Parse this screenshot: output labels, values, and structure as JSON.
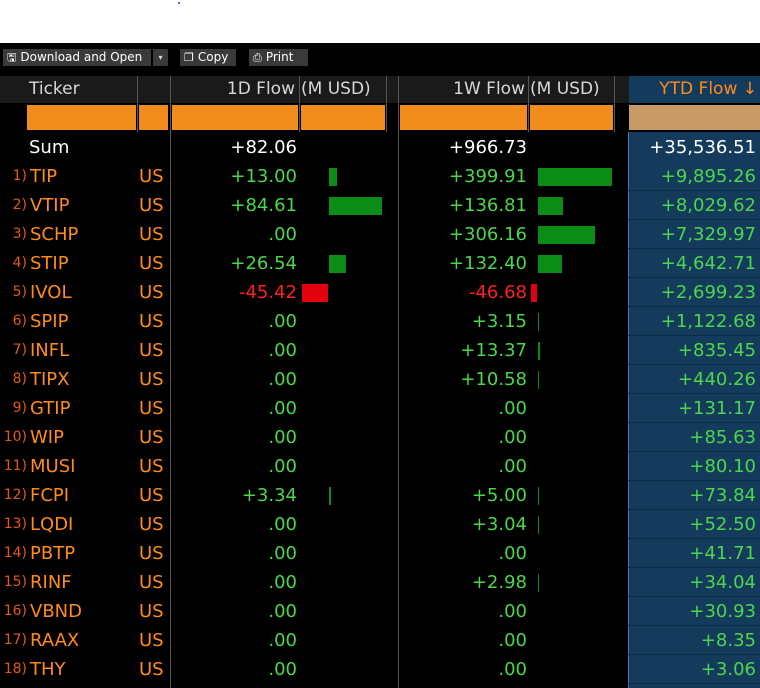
{
  "toolbar": {
    "download_label": "Download and Open",
    "dropdown_glyph": "▾",
    "copy_label": "Copy",
    "print_label": "Print"
  },
  "header": {
    "ticker": "Ticker",
    "flow_1d": "1D Flow",
    "flow_1w": "1W Flow",
    "unit": "(M USD)",
    "ytd": "YTD Flow ↓"
  },
  "sum": {
    "label": "Sum",
    "flow_1d": "+82.06",
    "flow_1w": "+966.73",
    "ytd": "+35,536.51"
  },
  "colors": {
    "orange": "#ff8c1a",
    "green": "#4cd64c",
    "red": "#ff2020",
    "bar_green": "#0b8c16",
    "bar_red": "#e3000f",
    "ytd_bg": "#143a5c"
  },
  "rows": [
    {
      "n": "1)",
      "ticker": "TIP",
      "country": "US",
      "d1": "+13.00",
      "w1": "+399.91",
      "ytd": "+9,895.26",
      "d1v": 13.0,
      "w1v": 399.91
    },
    {
      "n": "2)",
      "ticker": "VTIP",
      "country": "US",
      "d1": "+84.61",
      "w1": "+136.81",
      "ytd": "+8,029.62",
      "d1v": 84.61,
      "w1v": 136.81
    },
    {
      "n": "3)",
      "ticker": "SCHP",
      "country": "US",
      "d1": ".00",
      "w1": "+306.16",
      "ytd": "+7,329.97",
      "d1v": 0,
      "w1v": 306.16
    },
    {
      "n": "4)",
      "ticker": "STIP",
      "country": "US",
      "d1": "+26.54",
      "w1": "+132.40",
      "ytd": "+4,642.71",
      "d1v": 26.54,
      "w1v": 132.4
    },
    {
      "n": "5)",
      "ticker": "IVOL",
      "country": "US",
      "d1": "-45.42",
      "w1": "-46.68",
      "ytd": "+2,699.23",
      "d1v": -45.42,
      "w1v": -46.68
    },
    {
      "n": "6)",
      "ticker": "SPIP",
      "country": "US",
      "d1": ".00",
      "w1": "+3.15",
      "ytd": "+1,122.68",
      "d1v": 0,
      "w1v": 3.15
    },
    {
      "n": "7)",
      "ticker": "INFL",
      "country": "US",
      "d1": ".00",
      "w1": "+13.37",
      "ytd": "+835.45",
      "d1v": 0,
      "w1v": 13.37
    },
    {
      "n": "8)",
      "ticker": "TIPX",
      "country": "US",
      "d1": ".00",
      "w1": "+10.58",
      "ytd": "+440.26",
      "d1v": 0,
      "w1v": 10.58
    },
    {
      "n": "9)",
      "ticker": "GTIP",
      "country": "US",
      "d1": ".00",
      "w1": ".00",
      "ytd": "+131.17",
      "d1v": 0,
      "w1v": 0
    },
    {
      "n": "10)",
      "ticker": "WIP",
      "country": "US",
      "d1": ".00",
      "w1": ".00",
      "ytd": "+85.63",
      "d1v": 0,
      "w1v": 0
    },
    {
      "n": "11)",
      "ticker": "MUSI",
      "country": "US",
      "d1": ".00",
      "w1": ".00",
      "ytd": "+80.10",
      "d1v": 0,
      "w1v": 0
    },
    {
      "n": "12)",
      "ticker": "FCPI",
      "country": "US",
      "d1": "+3.34",
      "w1": "+5.00",
      "ytd": "+73.84",
      "d1v": 3.34,
      "w1v": 5.0
    },
    {
      "n": "13)",
      "ticker": "LQDI",
      "country": "US",
      "d1": ".00",
      "w1": "+3.04",
      "ytd": "+52.50",
      "d1v": 0,
      "w1v": 3.04
    },
    {
      "n": "14)",
      "ticker": "PBTP",
      "country": "US",
      "d1": ".00",
      "w1": ".00",
      "ytd": "+41.71",
      "d1v": 0,
      "w1v": 0
    },
    {
      "n": "15)",
      "ticker": "RINF",
      "country": "US",
      "d1": ".00",
      "w1": "+2.98",
      "ytd": "+34.04",
      "d1v": 0,
      "w1v": 2.98
    },
    {
      "n": "16)",
      "ticker": "VBND",
      "country": "US",
      "d1": ".00",
      "w1": ".00",
      "ytd": "+30.93",
      "d1v": 0,
      "w1v": 0
    },
    {
      "n": "17)",
      "ticker": "RAAX",
      "country": "US",
      "d1": ".00",
      "w1": ".00",
      "ytd": "+8.35",
      "d1v": 0,
      "w1v": 0
    },
    {
      "n": "18)",
      "ticker": "THY",
      "country": "US",
      "d1": ".00",
      "w1": ".00",
      "ytd": "+3.06",
      "d1v": 0,
      "w1v": 0
    }
  ]
}
